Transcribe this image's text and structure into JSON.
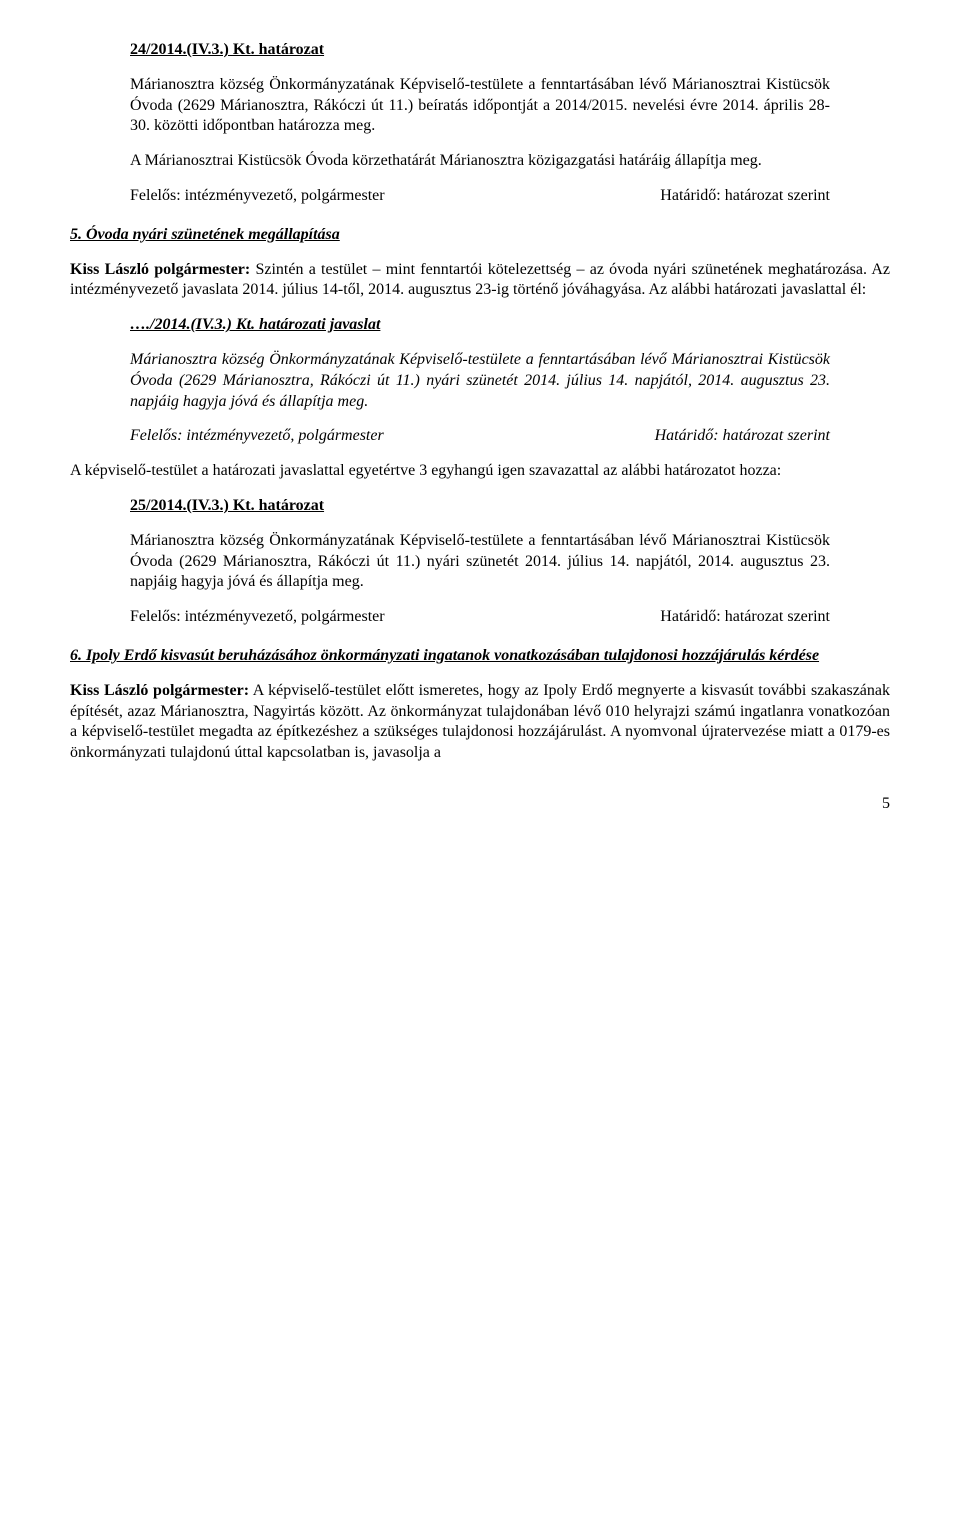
{
  "res1": {
    "title": "24/2014.(IV.3.) Kt. határozat",
    "p1": "Márianosztra község Önkormányzatának Képviselő-testülete a fenntartásában lévő Márianosztrai Kistücsök Óvoda (2629 Márianosztra, Rákóczi út 11.) beíratás időpontját a 2014/2015. nevelési évre 2014. április 28-30. közötti időpontban határozza meg.",
    "p2": "A Márianosztrai Kistücsök Óvoda körzethatárát Márianosztra közigazgatási határáig állapítja meg.",
    "resp_left": "Felelős: intézményvezető, polgármester",
    "resp_right": "Határidő: határozat szerint"
  },
  "sec5": {
    "heading": "5. Óvoda nyári szünetének megállapítása",
    "p1a": "Kiss László polgármester:",
    "p1b": " Szintén a testület – mint fenntartói kötelezettség – az óvoda nyári szünetének meghatározása. Az intézményvezető javaslata 2014. július 14-től, 2014. augusztus 23-ig történő jóváhagyása. Az alábbi határozati javaslattal él:",
    "prop_title": "…./2014.(IV.3.) Kt. határozati javaslat",
    "prop_p1": "Márianosztra község Önkormányzatának Képviselő-testülete a fenntartásában lévő Márianosztrai Kistücsök Óvoda (2629 Márianosztra, Rákóczi út 11.) nyári szünetét 2014. július 14. napjától, 2014. augusztus 23. napjáig hagyja jóvá és állapítja meg.",
    "prop_resp_left": "Felelős: intézményvezető, polgármester",
    "prop_resp_right": "Határidő: határozat szerint",
    "vote": "A képviselő-testület a határozati javaslattal egyetértve 3 egyhangú igen szavazattal az alábbi határozatot hozza:",
    "res2_title": "25/2014.(IV.3.) Kt. határozat",
    "res2_p1": "Márianosztra község Önkormányzatának Képviselő-testülete a fenntartásában lévő Márianosztrai Kistücsök Óvoda (2629 Márianosztra, Rákóczi út 11.) nyári szünetét 2014. július 14. napjától, 2014. augusztus 23. napjáig hagyja jóvá és állapítja meg.",
    "res2_resp_left": "Felelős: intézményvezető, polgármester",
    "res2_resp_right": "Határidő: határozat szerint"
  },
  "sec6": {
    "heading": "6. Ipoly Erdő kisvasút beruházásához önkormányzati ingatanok vonatkozásában tulajdonosi hozzájárulás kérdése",
    "p1a": "Kiss László polgármester:",
    "p1b": " A képviselő-testület előtt ismeretes, hogy az Ipoly Erdő megnyerte a kisvasút további szakaszának építését, azaz Márianosztra, Nagyirtás között. Az önkormányzat tulajdonában lévő 010 helyrajzi számú ingatlanra vonatkozóan a képviselő-testület megadta az építkezéshez a szükséges tulajdonosi hozzájárulást. A nyomvonal újratervezése miatt a 0179-es önkormányzati tulajdonú úttal kapcsolatban is, javasolja a"
  },
  "page_num": "5"
}
